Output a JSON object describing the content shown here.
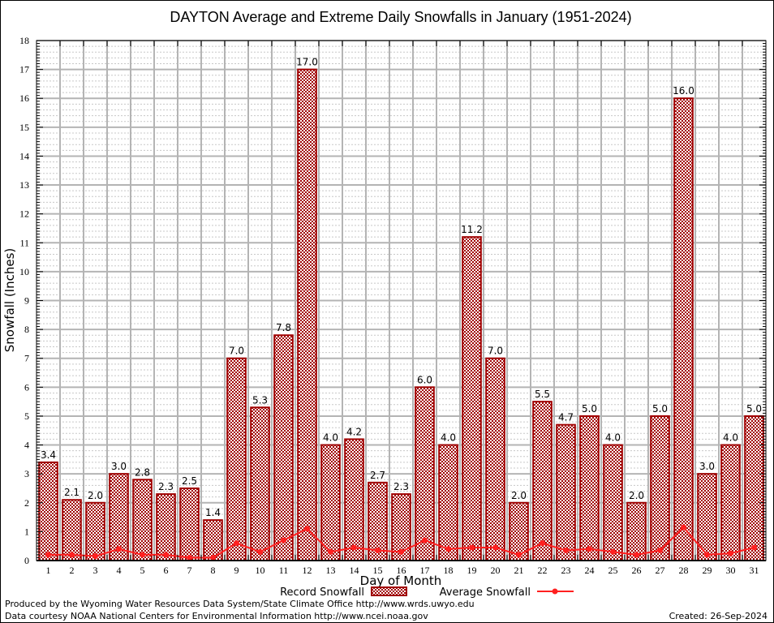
{
  "chart_data": {
    "type": "bar",
    "title": "DAYTON Average and Extreme Daily Snowfalls in January (1951-2024)",
    "xlabel": "Day of Month",
    "ylabel": "Snowfall (Inches)",
    "ylim": [
      0,
      18
    ],
    "yticks": [
      0,
      1,
      2,
      3,
      4,
      5,
      6,
      7,
      8,
      9,
      10,
      11,
      12,
      13,
      14,
      15,
      16,
      17,
      18
    ],
    "grid": true,
    "categories": [
      "1",
      "2",
      "3",
      "4",
      "5",
      "6",
      "7",
      "8",
      "9",
      "10",
      "11",
      "12",
      "13",
      "14",
      "15",
      "16",
      "17",
      "18",
      "19",
      "20",
      "21",
      "22",
      "23",
      "24",
      "25",
      "26",
      "27",
      "28",
      "29",
      "30",
      "31"
    ],
    "series": [
      {
        "name": "Record Snowfall",
        "type": "bar",
        "color": "#a00000",
        "values": [
          3.4,
          2.1,
          2.0,
          3.0,
          2.8,
          2.3,
          2.5,
          1.4,
          7.0,
          5.3,
          7.8,
          17.0,
          4.0,
          4.2,
          2.7,
          2.3,
          6.0,
          4.0,
          11.2,
          7.0,
          2.0,
          5.5,
          4.7,
          5.0,
          4.0,
          2.0,
          5.0,
          16.0,
          3.0,
          4.0,
          5.0
        ],
        "labels": [
          "3.4",
          "2.1",
          "2.0",
          "3.0",
          "2.8",
          "2.3",
          "2.5",
          "1.4",
          "7.0",
          "5.3",
          "7.8",
          "17.0",
          "4.0",
          "4.2",
          "2.7",
          "2.3",
          "6.0",
          "4.0",
          "11.2",
          "7.0",
          "2.0",
          "5.5",
          "4.7",
          "5.0",
          "4.0",
          "2.0",
          "5.0",
          "16.0",
          "3.0",
          "4.0",
          "5.0"
        ]
      },
      {
        "name": "Average Snowfall",
        "type": "line",
        "color": "#ff2020",
        "values": [
          0.2,
          0.2,
          0.15,
          0.4,
          0.2,
          0.2,
          0.1,
          0.1,
          0.6,
          0.3,
          0.7,
          1.1,
          0.3,
          0.45,
          0.35,
          0.3,
          0.7,
          0.4,
          0.45,
          0.45,
          0.2,
          0.6,
          0.35,
          0.4,
          0.3,
          0.2,
          0.35,
          1.15,
          0.2,
          0.25,
          0.45
        ]
      }
    ],
    "legend": {
      "placement": "bottom-center",
      "entries": [
        "Record Snowfall",
        "Average Snowfall"
      ]
    }
  },
  "footer": {
    "produced_by": "Produced by the Wyoming Water Resources Data System/State Climate Office http://www.wrds.uwyo.edu",
    "data_courtesy": "Data courtesy NOAA National Centers for Environmental Information http://www.ncei.noaa.gov",
    "created": "Created: 26-Sep-2024"
  }
}
